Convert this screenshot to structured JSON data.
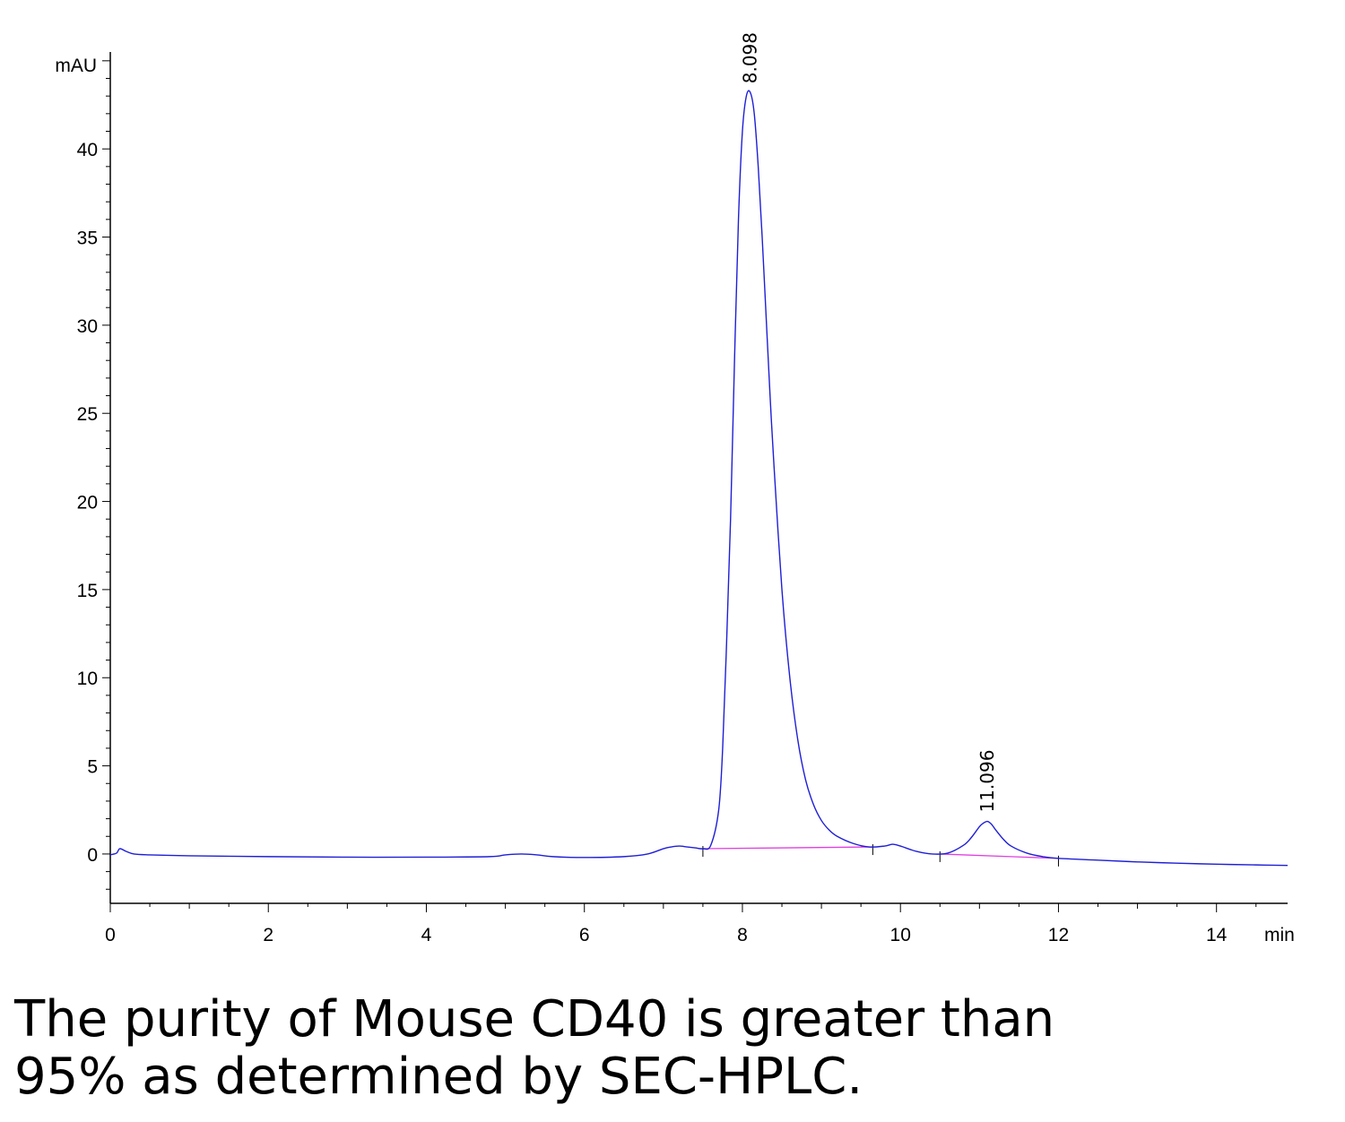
{
  "chart_data": {
    "type": "line",
    "ylabel": "mAU",
    "xlabel": "min",
    "xlim": [
      0,
      14.9
    ],
    "ylim": [
      -2.8,
      45.5
    ],
    "x_ticks": [
      0,
      2,
      4,
      6,
      8,
      10,
      12,
      14
    ],
    "x_tick_labels": [
      "0",
      "2",
      "4",
      "6",
      "8",
      "10",
      "12",
      "14"
    ],
    "y_ticks": [
      0,
      5,
      10,
      15,
      20,
      25,
      30,
      35,
      40
    ],
    "y_tick_labels": [
      "0",
      "5",
      "10",
      "15",
      "20",
      "25",
      "30",
      "35",
      "40"
    ],
    "grid": false,
    "series": [
      {
        "color": "#1f1fd6",
        "x": [
          0.0,
          0.08,
          0.12,
          0.2,
          0.3,
          0.5,
          1.0,
          2.0,
          3.0,
          4.0,
          4.8,
          5.0,
          5.2,
          5.4,
          5.6,
          6.0,
          6.5,
          6.8,
          7.0,
          7.1,
          7.2,
          7.3,
          7.4,
          7.5,
          7.6,
          7.7,
          7.75,
          7.8,
          7.85,
          7.9,
          7.95,
          8.0,
          8.05,
          8.1,
          8.15,
          8.2,
          8.25,
          8.3,
          8.35,
          8.4,
          8.5,
          8.6,
          8.7,
          8.8,
          8.9,
          9.0,
          9.1,
          9.2,
          9.4,
          9.6,
          9.8,
          9.9,
          10.0,
          10.2,
          10.4,
          10.6,
          10.8,
          10.9,
          11.0,
          11.05,
          11.1,
          11.15,
          11.2,
          11.3,
          11.4,
          11.6,
          11.8,
          12.0,
          12.5,
          13.0,
          13.5,
          14.0,
          14.5,
          14.9
        ],
        "y": [
          -0.05,
          0.05,
          0.3,
          0.15,
          0.0,
          -0.05,
          -0.1,
          -0.15,
          -0.18,
          -0.18,
          -0.15,
          -0.05,
          0.0,
          -0.05,
          -0.15,
          -0.2,
          -0.15,
          0.0,
          0.3,
          0.4,
          0.45,
          0.4,
          0.35,
          0.3,
          0.5,
          2.5,
          6.0,
          12.0,
          19.0,
          28.0,
          36.0,
          41.0,
          43.0,
          43.2,
          42.0,
          39.0,
          35.0,
          30.5,
          26.0,
          22.0,
          15.0,
          10.0,
          6.5,
          4.2,
          2.8,
          1.9,
          1.35,
          1.0,
          0.6,
          0.4,
          0.45,
          0.55,
          0.45,
          0.15,
          0.0,
          0.05,
          0.5,
          0.95,
          1.55,
          1.75,
          1.85,
          1.7,
          1.4,
          0.85,
          0.45,
          0.05,
          -0.15,
          -0.25,
          -0.35,
          -0.45,
          -0.52,
          -0.58,
          -0.62,
          -0.65
        ]
      }
    ],
    "baselines": [
      {
        "color": "#e040e0",
        "x": [
          7.5,
          9.65
        ],
        "y": [
          0.3,
          0.4
        ]
      },
      {
        "color": "#e040e0",
        "x": [
          10.5,
          12.0
        ],
        "y": [
          0.0,
          -0.25
        ]
      }
    ],
    "peak_labels": [
      {
        "text": "8.098",
        "x": 8.098,
        "y": 43.2
      },
      {
        "text": "11.096",
        "x": 11.096,
        "y": 1.85
      }
    ]
  },
  "caption": {
    "line1": "The purity of Mouse CD40 is greater than",
    "line2": "95% as determined by SEC-HPLC."
  }
}
